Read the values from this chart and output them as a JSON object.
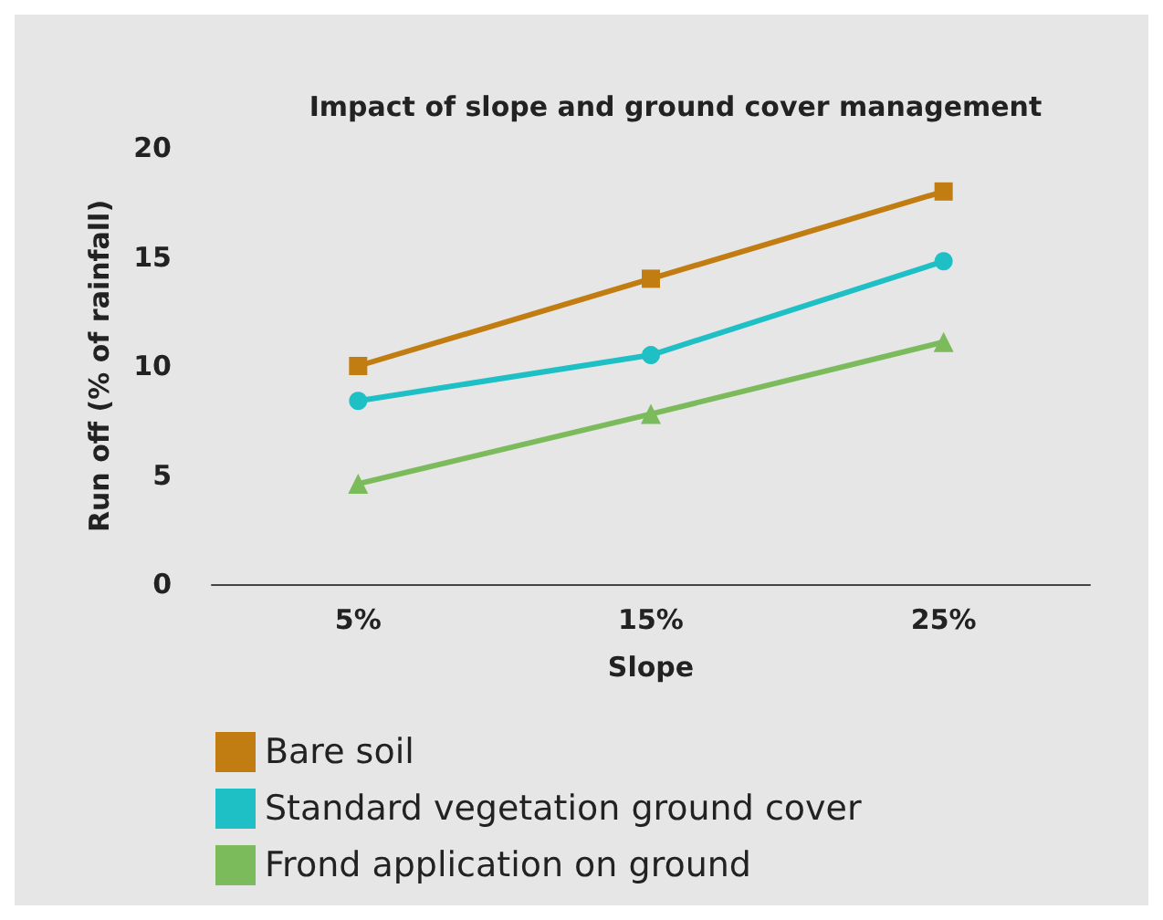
{
  "chart_data": {
    "type": "line",
    "title": "Impact of slope and ground cover management",
    "xlabel": "Slope",
    "ylabel": "Run off (% of rainfall)",
    "categories": [
      "5%",
      "15%",
      "25%"
    ],
    "series": [
      {
        "name": "Bare soil",
        "color": "#c17d11",
        "marker": "square",
        "values": [
          10,
          14,
          18
        ]
      },
      {
        "name": "Standard vegetation ground cover",
        "color": "#1fbfc6",
        "marker": "circle",
        "values": [
          8.4,
          10.5,
          14.8
        ]
      },
      {
        "name": "Frond application on ground",
        "color": "#7cbb5c",
        "marker": "triangle",
        "values": [
          4.6,
          7.8,
          11.1
        ]
      }
    ],
    "ylim": [
      0,
      20
    ],
    "yticks": [
      0,
      5,
      10,
      15,
      20
    ],
    "grid": false,
    "legend": "bottom",
    "line_style": "solid"
  }
}
